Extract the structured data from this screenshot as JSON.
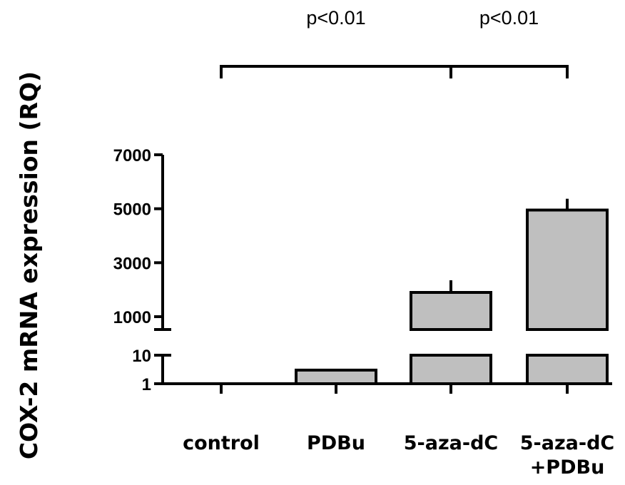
{
  "chart_data": {
    "type": "bar",
    "categories": [
      "control",
      "PDBu",
      "5-aza-dC",
      "5-aza-dC\n+PDBu"
    ],
    "values": [
      1,
      3,
      1900,
      4950
    ],
    "errors": [
      0,
      0,
      450,
      420
    ],
    "ylabel": "COX-2 mRNA expression (RQ)",
    "xlabel": "",
    "title": "",
    "y_axis": {
      "broken": true,
      "lower_segment": {
        "range": [
          1,
          10
        ],
        "ticks": [
          1,
          10
        ]
      },
      "upper_segment": {
        "range": [
          500,
          7000
        ],
        "ticks": [
          1000,
          3000,
          5000,
          7000
        ]
      }
    },
    "bar_color": "#bfbfbf",
    "grid": false,
    "legend": "none",
    "significance": [
      {
        "from": "control",
        "to": "5-aza-dC",
        "label": "p<0.01"
      },
      {
        "from": "5-aza-dC",
        "to": "5-aza-dC\n+PDBu",
        "label": "p<0.01"
      }
    ]
  }
}
